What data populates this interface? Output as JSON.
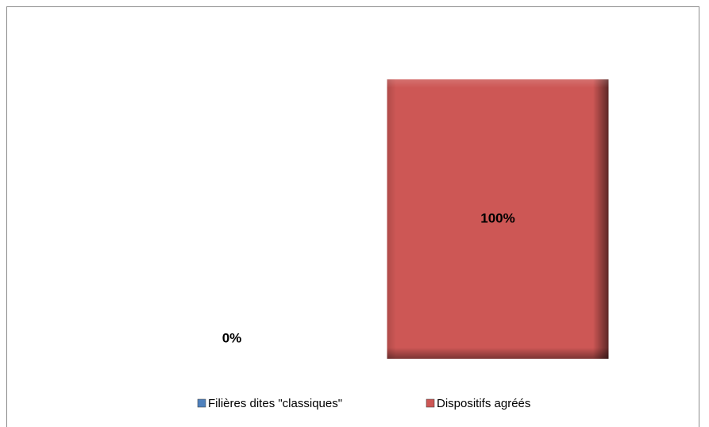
{
  "chart_data": {
    "type": "bar",
    "categories": [
      null
    ],
    "series": [
      {
        "name": "Filières dites \"classiques\"",
        "color": "#4f81bd",
        "values": [
          0
        ],
        "value_labels": [
          "0%"
        ]
      },
      {
        "name": "Dispositifs agréés",
        "color": "#cd5755",
        "values": [
          100
        ],
        "value_labels": [
          "100%"
        ]
      }
    ],
    "ylim": [
      0,
      100
    ]
  }
}
